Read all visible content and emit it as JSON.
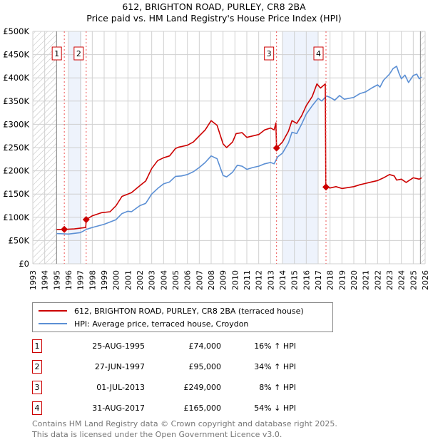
{
  "title_line1": "612, BRIGHTON ROAD, PURLEY, CR8 2BA",
  "title_line2": "Price paid vs. HM Land Registry's House Price Index (HPI)",
  "chart_data": {
    "type": "line",
    "xlim": [
      1993,
      2026
    ],
    "ylim": [
      0,
      500000
    ],
    "y_ticks": [
      0,
      50000,
      100000,
      150000,
      200000,
      250000,
      300000,
      350000,
      400000,
      450000,
      500000
    ],
    "y_tick_labels": [
      "£0",
      "£50K",
      "£100K",
      "£150K",
      "£200K",
      "£250K",
      "£300K",
      "£350K",
      "£400K",
      "£450K",
      "£500K"
    ],
    "x_ticks": [
      "1993",
      "1994",
      "1995",
      "1996",
      "1997",
      "1998",
      "1999",
      "2000",
      "2001",
      "2002",
      "2003",
      "2004",
      "2005",
      "2006",
      "2007",
      "2008",
      "2009",
      "2010",
      "2011",
      "2012",
      "2013",
      "2014",
      "2015",
      "2016",
      "2017",
      "2018",
      "2019",
      "2020",
      "2021",
      "2022",
      "2023",
      "2024",
      "2025",
      "2026"
    ],
    "grid": true,
    "series": [
      {
        "name": "612, BRIGHTON ROAD, PURLEY, CR8 2BA (terraced house)",
        "color": "#cc0000",
        "points": [
          [
            1995,
            74
          ],
          [
            1995.65,
            74
          ],
          [
            1996.5,
            75
          ],
          [
            1997.45,
            78
          ],
          [
            1997.49,
            95
          ],
          [
            1998,
            103
          ],
          [
            1998.8,
            110
          ],
          [
            1999.5,
            112
          ],
          [
            2000,
            125
          ],
          [
            2000.5,
            145
          ],
          [
            2001,
            150
          ],
          [
            2001.3,
            153
          ],
          [
            2002,
            168
          ],
          [
            2002.5,
            178
          ],
          [
            2003,
            205
          ],
          [
            2003.5,
            222
          ],
          [
            2004,
            228
          ],
          [
            2004.5,
            232
          ],
          [
            2005,
            248
          ],
          [
            2005.3,
            251
          ],
          [
            2006,
            255
          ],
          [
            2006.5,
            262
          ],
          [
            2007,
            275
          ],
          [
            2007.5,
            288
          ],
          [
            2008,
            308
          ],
          [
            2008.5,
            298
          ],
          [
            2009,
            258
          ],
          [
            2009.3,
            250
          ],
          [
            2009.8,
            262
          ],
          [
            2010.1,
            280
          ],
          [
            2010.6,
            282
          ],
          [
            2011,
            272
          ],
          [
            2011.5,
            275
          ],
          [
            2012,
            278
          ],
          [
            2012.5,
            288
          ],
          [
            2013,
            292
          ],
          [
            2013.3,
            288
          ],
          [
            2013.45,
            303
          ],
          [
            2013.5,
            249
          ],
          [
            2014,
            262
          ],
          [
            2014.5,
            285
          ],
          [
            2014.8,
            308
          ],
          [
            2015.2,
            302
          ],
          [
            2015.6,
            318
          ],
          [
            2016,
            340
          ],
          [
            2016.5,
            360
          ],
          [
            2016.9,
            387
          ],
          [
            2017.2,
            378
          ],
          [
            2017.6,
            387
          ],
          [
            2017.65,
            165
          ],
          [
            2018,
            163
          ],
          [
            2018.5,
            166
          ],
          [
            2019,
            162
          ],
          [
            2020,
            166
          ],
          [
            2020.5,
            170
          ],
          [
            2021.5,
            176
          ],
          [
            2022,
            179
          ],
          [
            2022.5,
            185
          ],
          [
            2023,
            192
          ],
          [
            2023.4,
            189
          ],
          [
            2023.6,
            180
          ],
          [
            2024,
            182
          ],
          [
            2024.4,
            175
          ],
          [
            2025,
            185
          ],
          [
            2025.5,
            182
          ],
          [
            2025.7,
            185
          ]
        ]
      },
      {
        "name": "HPI: Average price, terraced house, Croydon",
        "color": "#5b8fd4",
        "points": [
          [
            1995,
            65
          ],
          [
            1996,
            64
          ],
          [
            1997,
            67
          ],
          [
            1997.5,
            74
          ],
          [
            1998,
            78
          ],
          [
            1999,
            85
          ],
          [
            2000,
            95
          ],
          [
            2000.5,
            108
          ],
          [
            2001,
            113
          ],
          [
            2001.3,
            112
          ],
          [
            2002,
            125
          ],
          [
            2002.5,
            130
          ],
          [
            2003,
            150
          ],
          [
            2003.5,
            162
          ],
          [
            2004,
            172
          ],
          [
            2004.5,
            176
          ],
          [
            2005,
            188
          ],
          [
            2005.5,
            189
          ],
          [
            2006,
            192
          ],
          [
            2006.5,
            198
          ],
          [
            2007,
            207
          ],
          [
            2007.5,
            218
          ],
          [
            2008,
            232
          ],
          [
            2008.5,
            226
          ],
          [
            2009,
            190
          ],
          [
            2009.3,
            187
          ],
          [
            2009.8,
            197
          ],
          [
            2010.2,
            212
          ],
          [
            2010.6,
            210
          ],
          [
            2011,
            203
          ],
          [
            2011.5,
            207
          ],
          [
            2012,
            210
          ],
          [
            2012.5,
            215
          ],
          [
            2013,
            218
          ],
          [
            2013.3,
            215
          ],
          [
            2013.6,
            230
          ],
          [
            2014,
            238
          ],
          [
            2014.5,
            260
          ],
          [
            2014.8,
            283
          ],
          [
            2015.2,
            280
          ],
          [
            2015.6,
            300
          ],
          [
            2016,
            322
          ],
          [
            2016.5,
            340
          ],
          [
            2017,
            356
          ],
          [
            2017.3,
            350
          ],
          [
            2017.7,
            361
          ],
          [
            2018,
            358
          ],
          [
            2018.4,
            352
          ],
          [
            2018.8,
            362
          ],
          [
            2019.2,
            354
          ],
          [
            2020,
            358
          ],
          [
            2020.5,
            366
          ],
          [
            2021,
            370
          ],
          [
            2021.5,
            378
          ],
          [
            2022,
            385
          ],
          [
            2022.2,
            380
          ],
          [
            2022.5,
            395
          ],
          [
            2023,
            408
          ],
          [
            2023.3,
            420
          ],
          [
            2023.6,
            425
          ],
          [
            2023.8,
            410
          ],
          [
            2024,
            398
          ],
          [
            2024.3,
            406
          ],
          [
            2024.6,
            390
          ],
          [
            2025,
            405
          ],
          [
            2025.3,
            408
          ],
          [
            2025.5,
            398
          ],
          [
            2025.7,
            402
          ]
        ]
      }
    ],
    "y_units_in_points": "thousands GBP",
    "sales": [
      {
        "label": "1",
        "x": 1995.65,
        "y": 74
      },
      {
        "label": "2",
        "x": 1997.49,
        "y": 95
      },
      {
        "label": "3",
        "x": 2013.5,
        "y": 249
      },
      {
        "label": "4",
        "x": 2017.66,
        "y": 165
      }
    ],
    "shaded_ranges": [
      [
        1996,
        1997.1
      ],
      [
        2014,
        2017
      ]
    ],
    "hatched_ranges": [
      [
        1993,
        1995
      ],
      [
        2025.6,
        2026
      ]
    ]
  },
  "legend": {
    "property": "612, BRIGHTON ROAD, PURLEY, CR8 2BA (terraced house)",
    "hpi": "HPI: Average price, terraced house, Croydon"
  },
  "transactions": [
    {
      "num": "1",
      "date": "25-AUG-1995",
      "price": "£74,000",
      "pct": "16% ↑ HPI"
    },
    {
      "num": "2",
      "date": "27-JUN-1997",
      "price": "£95,000",
      "pct": "34% ↑ HPI"
    },
    {
      "num": "3",
      "date": "01-JUL-2013",
      "price": "£249,000",
      "pct": "8% ↑ HPI"
    },
    {
      "num": "4",
      "date": "31-AUG-2017",
      "price": "£165,000",
      "pct": "54% ↓ HPI"
    }
  ],
  "footer_line1": "Contains HM Land Registry data © Crown copyright and database right 2025.",
  "footer_line2": "This data is licensed under the Open Government Licence v3.0."
}
